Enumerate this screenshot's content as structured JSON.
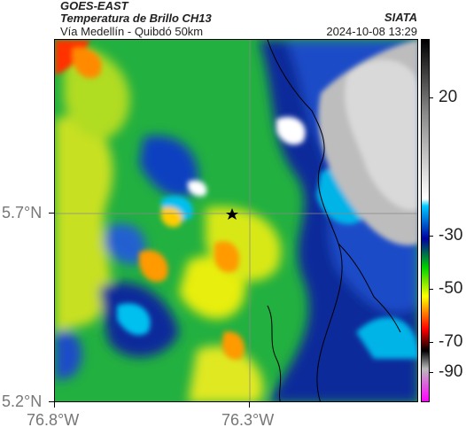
{
  "header": {
    "satellite": "GOES-EAST",
    "product": "Temperatura de Brillo CH13",
    "region": "Vía Medellín - Quibdó 50km",
    "organization": "SIATA",
    "timestamp": "2024-10-08 13:29"
  },
  "map": {
    "lon_ticks": [
      "76.8°W",
      "76.3°W"
    ],
    "lat_ticks": [
      "5.7°N",
      "5.2°N"
    ],
    "marker_icon": "star-icon"
  },
  "colorbar": {
    "labels": [
      "20",
      "-30",
      "-50",
      "-70",
      "-90"
    ],
    "colors": [
      "#000000",
      "#ffffff",
      "#00c8ff",
      "#0000a0",
      "#00d000",
      "#ffff00",
      "#ff0000",
      "#000000",
      "#ff00ff"
    ]
  }
}
